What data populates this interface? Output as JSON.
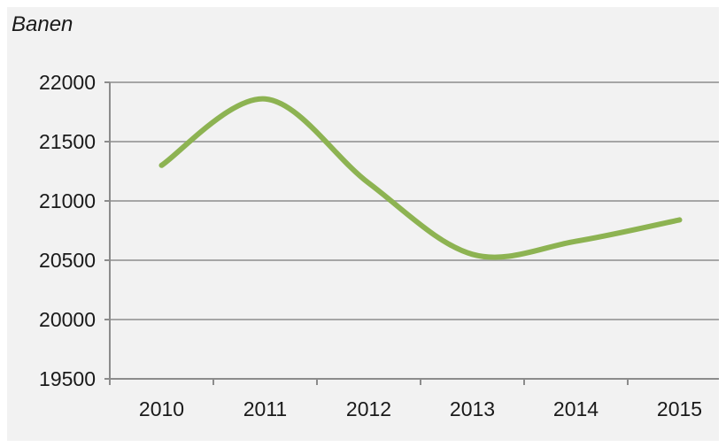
{
  "chart_data": {
    "type": "line",
    "ylabel": "Banen",
    "x": [
      "2010",
      "2011",
      "2012",
      "2013",
      "2014",
      "2015"
    ],
    "series": [
      {
        "values": [
          21300,
          21860,
          21150,
          20550,
          20660,
          20840
        ]
      }
    ],
    "ylim": [
      19500,
      22000
    ],
    "yticks": [
      "22000",
      "21500",
      "21000",
      "20500",
      "20000",
      "19500"
    ],
    "grid": true,
    "line_color": "#8db352",
    "grid_color": "#a6a6a6",
    "axis_color": "#8c8c8c"
  }
}
